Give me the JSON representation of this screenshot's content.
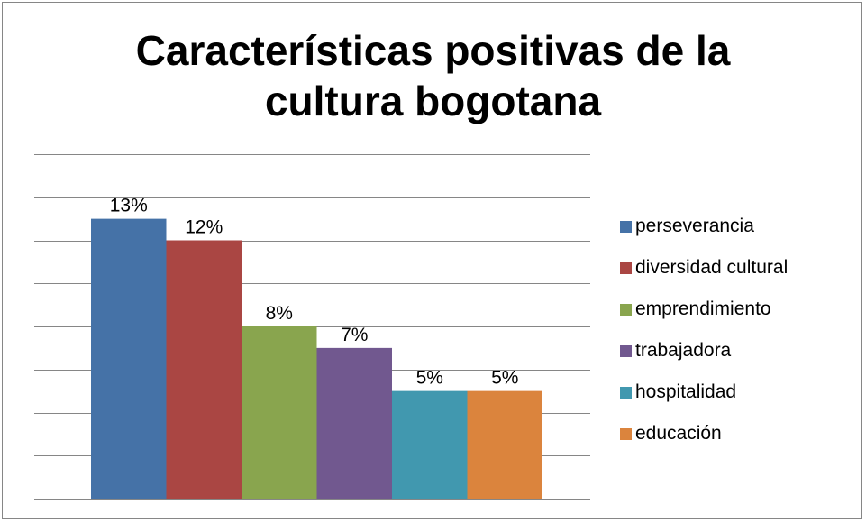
{
  "chart_data": {
    "type": "bar",
    "title": "Características positivas de la cultura bogotana",
    "title_lines": [
      "Características positivas de la",
      "cultura bogotana"
    ],
    "xlabel": "",
    "ylabel": "",
    "ylim": [
      0,
      0.16
    ],
    "grid": true,
    "legend_position": "right",
    "series": [
      {
        "name": "perseverancia",
        "value": 0.13,
        "label": "13%",
        "color": "#4572A7"
      },
      {
        "name": "diversidad cultural",
        "value": 0.12,
        "label": "12%",
        "color": "#AA4643"
      },
      {
        "name": "emprendimiento",
        "value": 0.08,
        "label": "8%",
        "color": "#89A54E"
      },
      {
        "name": "trabajadora",
        "value": 0.07,
        "label": "7%",
        "color": "#71588F"
      },
      {
        "name": "hospitalidad",
        "value": 0.05,
        "label": "5%",
        "color": "#4198AF"
      },
      {
        "name": "educación",
        "value": 0.05,
        "label": "5%",
        "color": "#DB843D"
      }
    ]
  }
}
